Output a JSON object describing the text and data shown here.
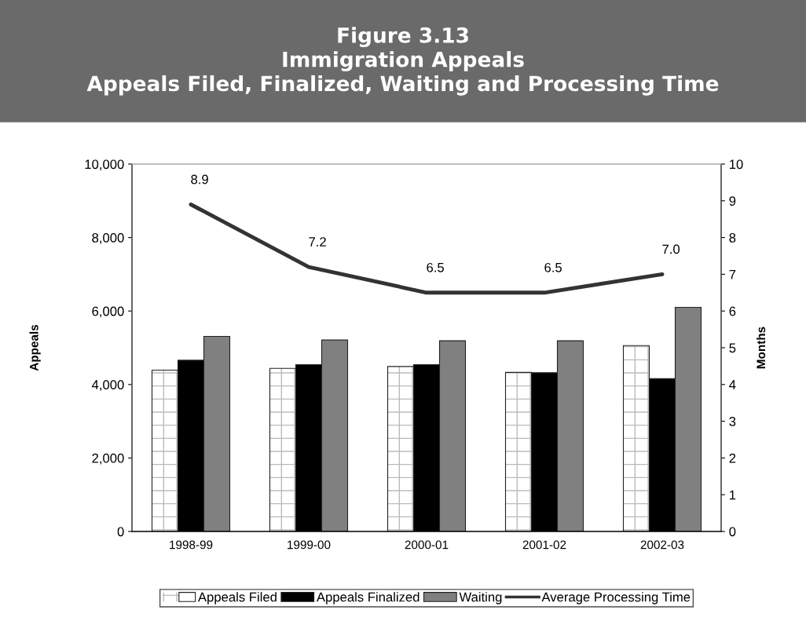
{
  "chart_data": {
    "type": "bar",
    "title": "Figure 3.13\nImmigration Appeals\nAppeals Filed, Finalized, Waiting and Processing Time",
    "ylabel": "Appeals",
    "y2label": "Months",
    "categories": [
      "1998-99",
      "1999-00",
      "2000-01",
      "2001-02",
      "2002-03"
    ],
    "series": [
      {
        "name": "Appeals Filed",
        "color": "#ffffff",
        "values": [
          4390,
          4440,
          4490,
          4330,
          5060
        ]
      },
      {
        "name": "Appeals Finalized",
        "color": "#000000",
        "values": [
          4660,
          4540,
          4540,
          4320,
          4160
        ]
      },
      {
        "name": "Waiting",
        "color": "#808080",
        "values": [
          5310,
          5210,
          5190,
          5190,
          6100
        ]
      },
      {
        "name": "Average Processing Time",
        "type": "line",
        "axis": "y2",
        "color": "#333333",
        "values": [
          8.9,
          7.2,
          6.5,
          6.5,
          7.0
        ],
        "value_labels": [
          "8.9",
          "7.2",
          "6.5",
          "6.5",
          "7.0"
        ]
      }
    ],
    "ylim": [
      0,
      10000
    ],
    "yticks": [
      {
        "value": 0,
        "label": "0"
      },
      {
        "value": 2000,
        "label": "2,000"
      },
      {
        "value": 4000,
        "label": "4,000"
      },
      {
        "value": 6000,
        "label": "6,000"
      },
      {
        "value": 8000,
        "label": "8,000"
      },
      {
        "value": 10000,
        "label": "10,000"
      }
    ],
    "y2lim": [
      0,
      10
    ],
    "y2ticks": [
      0,
      1,
      2,
      3,
      4,
      5,
      6,
      7,
      8,
      9,
      10
    ],
    "legend": "bottom",
    "grid": false
  }
}
